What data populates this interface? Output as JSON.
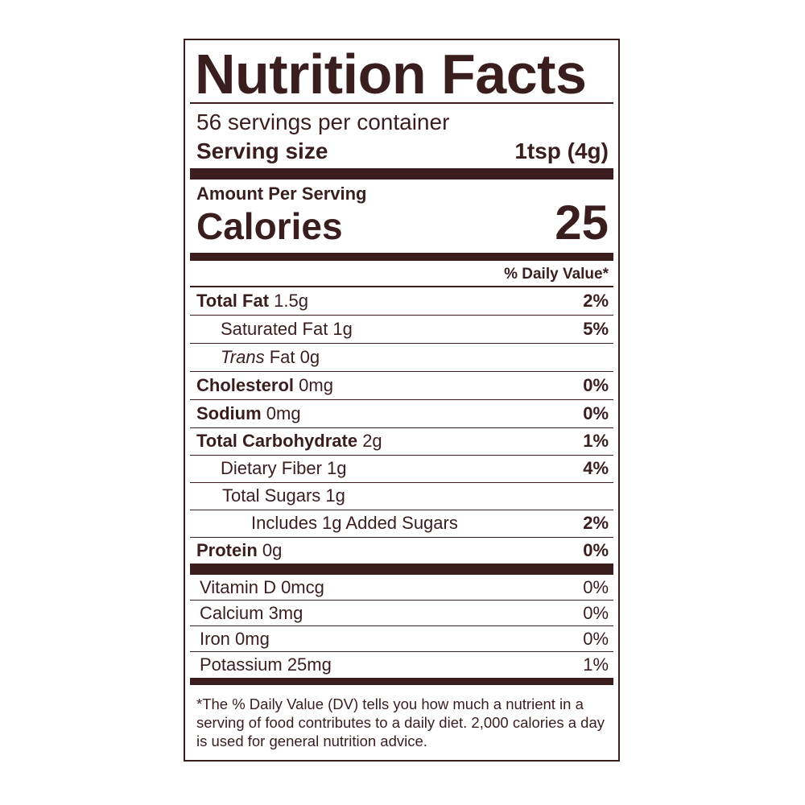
{
  "header": {
    "title": "Nutrition Facts",
    "servings": "56 servings per container",
    "serving_size_label": "Serving size",
    "serving_size": "1tsp (4g)"
  },
  "calories": {
    "amount_per_serving": "Amount Per Serving",
    "label": "Calories",
    "value": 25
  },
  "daily_value_header": "% Daily Value*",
  "nutrients": [
    {
      "name": "Total Fat",
      "amount": "1.5g",
      "dv": "2%"
    },
    {
      "name": "Saturated Fat 1g",
      "dv": "5%"
    },
    {
      "name": "Trans",
      "amount": "Fat 0g"
    },
    {
      "name": "Cholesterol",
      "amount": "0mg",
      "dv": "0%"
    },
    {
      "name": "Sodium",
      "amount": "0mg",
      "dv": "0%"
    },
    {
      "name": "Total Carbohydrate",
      "amount": "2g",
      "dv": "1%"
    },
    {
      "name": "Dietary Fiber 1g",
      "dv": "4%"
    },
    {
      "name": "Total Sugars 1g"
    },
    {
      "name": "Includes 1g Added Sugars",
      "dv": "2%"
    },
    {
      "name": "Protein",
      "amount": "0g",
      "dv": "0%"
    }
  ],
  "vitamins": [
    {
      "name": "Vitamin D 0mcg",
      "dv": "0%"
    },
    {
      "name": "Calcium 3mg",
      "dv": "0%"
    },
    {
      "name": "Iron 0mg",
      "dv": "0%"
    },
    {
      "name": "Potassium 25mg",
      "dv": "1%"
    }
  ],
  "footnote": "*The % Daily Value (DV) tells you how much a nutrient in a serving of food contributes to a daily diet. 2,000 calories a day is used for general nutrition advice."
}
